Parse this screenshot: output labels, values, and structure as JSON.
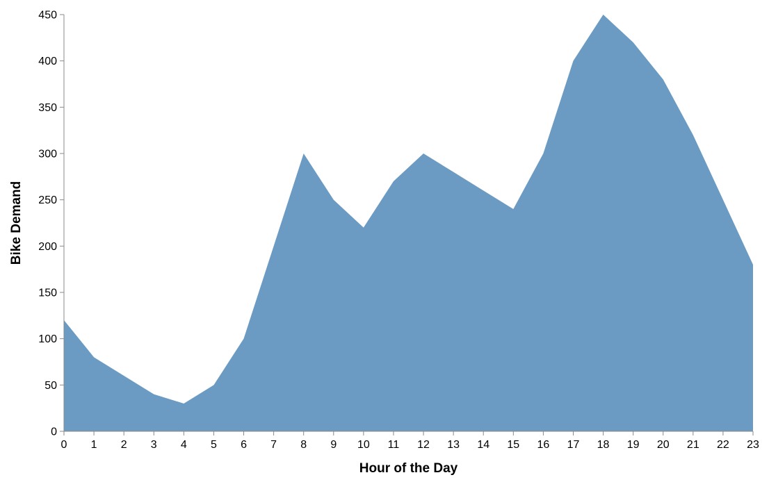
{
  "chart_data": {
    "type": "area",
    "title": "",
    "xlabel": "Hour of the Day",
    "ylabel": "Bike Demand",
    "x": [
      0,
      1,
      2,
      3,
      4,
      5,
      6,
      7,
      8,
      9,
      10,
      11,
      12,
      13,
      14,
      15,
      16,
      17,
      18,
      19,
      20,
      21,
      22,
      23
    ],
    "series": [
      {
        "values": [
          120,
          80,
          60,
          40,
          30,
          50,
          100,
          200,
          300,
          250,
          220,
          270,
          300,
          280,
          260,
          240,
          300,
          400,
          450,
          420,
          380,
          320,
          250,
          180
        ],
        "color": "#6b9bc3"
      }
    ],
    "xlim": [
      0,
      23
    ],
    "ylim": [
      0,
      450
    ],
    "yticks": [
      0,
      50,
      100,
      150,
      200,
      250,
      300,
      350,
      400,
      450
    ],
    "xticks": [
      0,
      1,
      2,
      3,
      4,
      5,
      6,
      7,
      8,
      9,
      10,
      11,
      12,
      13,
      14,
      15,
      16,
      17,
      18,
      19,
      20,
      21,
      22,
      23
    ],
    "grid": false,
    "legend": "none"
  }
}
